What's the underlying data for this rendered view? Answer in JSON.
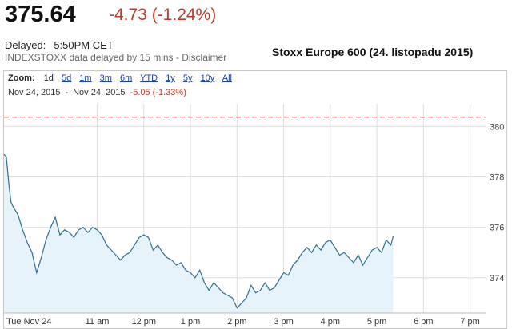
{
  "quote": {
    "price": "375.64",
    "change": "-4.73 (-1.24%)",
    "delayed_label": "Delayed:",
    "delayed_time": "5:50PM CET",
    "disclaimer": "INDEXSTOXX data delayed by 15 mins - Disclaimer"
  },
  "headline": "Stoxx Europe 600 (24. listopadu 2015)",
  "zoom": {
    "label": "Zoom:",
    "options": [
      "1d",
      "5d",
      "1m",
      "3m",
      "6m",
      "YTD",
      "1y",
      "5y",
      "10y",
      "All"
    ],
    "active": "1d"
  },
  "range": {
    "start": "Nov 24, 2015",
    "separator": "-",
    "end": "Nov 24, 2015",
    "change": "-5.05 (-1.33%)"
  },
  "colors": {
    "line": "#2f6f8f",
    "fill": "#e6f3fb",
    "prev_close": "#b83b2e",
    "grid": "#dddddd",
    "negative": "#b83b2e"
  },
  "chart_data": {
    "type": "area",
    "x_unit": "hour",
    "ylim": [
      372.6,
      380.9
    ],
    "xlim": [
      9.0,
      19.35
    ],
    "yticks": [
      374,
      376,
      378,
      380
    ],
    "x_tick_labels": [
      "Tue Nov 24",
      "11 am",
      "12 pm",
      "1 pm",
      "2 pm",
      "3 pm",
      "4 pm",
      "5 pm",
      "6 pm",
      "7 pm"
    ],
    "x_tick_values": [
      9.0,
      11.0,
      12.0,
      13.0,
      14.0,
      15.0,
      16.0,
      17.0,
      18.0,
      19.0
    ],
    "previous_close": 380.37,
    "grid": true,
    "x": [
      9.0,
      9.05,
      9.1,
      9.15,
      9.2,
      9.3,
      9.4,
      9.5,
      9.6,
      9.7,
      9.8,
      9.9,
      10.0,
      10.1,
      10.2,
      10.3,
      10.4,
      10.5,
      10.6,
      10.7,
      10.8,
      10.9,
      11.0,
      11.1,
      11.2,
      11.3,
      11.4,
      11.5,
      11.6,
      11.7,
      11.8,
      11.9,
      12.0,
      12.1,
      12.2,
      12.3,
      12.4,
      12.5,
      12.6,
      12.7,
      12.8,
      12.9,
      13.0,
      13.1,
      13.2,
      13.3,
      13.4,
      13.5,
      13.6,
      13.7,
      13.8,
      13.9,
      14.0,
      14.1,
      14.2,
      14.3,
      14.4,
      14.5,
      14.6,
      14.7,
      14.8,
      14.9,
      15.0,
      15.1,
      15.2,
      15.3,
      15.4,
      15.5,
      15.6,
      15.7,
      15.8,
      15.9,
      16.0,
      16.1,
      16.2,
      16.3,
      16.4,
      16.5,
      16.6,
      16.7,
      16.8,
      16.9,
      17.0,
      17.1,
      17.2,
      17.3,
      17.35
    ],
    "y": [
      378.9,
      378.8,
      377.8,
      377.0,
      376.8,
      376.5,
      375.9,
      375.4,
      375.0,
      374.2,
      374.8,
      375.5,
      376.0,
      376.4,
      375.7,
      375.9,
      375.8,
      375.6,
      375.9,
      376.0,
      375.8,
      376.0,
      375.9,
      375.7,
      375.3,
      375.1,
      374.9,
      374.7,
      374.9,
      375.0,
      375.3,
      375.6,
      375.7,
      375.6,
      375.1,
      375.3,
      375.0,
      374.8,
      374.7,
      374.5,
      374.6,
      374.3,
      374.2,
      374.0,
      374.3,
      373.8,
      373.5,
      373.8,
      373.6,
      373.4,
      373.3,
      373.2,
      372.8,
      373.0,
      373.2,
      373.7,
      373.4,
      373.5,
      373.8,
      373.5,
      373.6,
      373.9,
      374.2,
      374.1,
      374.5,
      374.7,
      375.0,
      375.2,
      375.0,
      375.3,
      375.1,
      375.4,
      375.5,
      375.2,
      374.9,
      375.0,
      374.8,
      374.6,
      374.9,
      374.5,
      374.8,
      375.1,
      375.2,
      375.0,
      375.5,
      375.3,
      375.64
    ]
  }
}
